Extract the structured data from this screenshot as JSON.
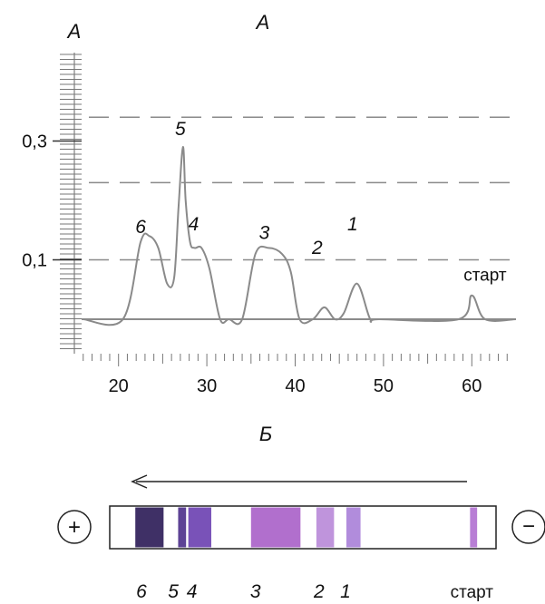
{
  "chart_data": {
    "type": "line",
    "title": "А",
    "ylabel": "А",
    "xlabel": "",
    "xlim": [
      15,
      65
    ],
    "ylim": [
      0,
      0.36
    ],
    "xticks": [
      20,
      30,
      40,
      50,
      60
    ],
    "xtick_labels": [
      "20",
      "30",
      "40",
      "50",
      "60"
    ],
    "yticks": [
      0.1,
      0.3
    ],
    "ytick_labels": [
      "0,1",
      "0,3"
    ],
    "grid_y": [
      0.1,
      0.23,
      0.34
    ],
    "series": [
      {
        "x": [
          16,
          20.5,
          22.5,
          23.5,
          24.5,
          25.5,
          26.3,
          26.8,
          27.3,
          27.6,
          28.1,
          28.6,
          29.4,
          30.3,
          31.5,
          32.5,
          34,
          35.5,
          37,
          38.5,
          39.5,
          40.5,
          42,
          43.3,
          44.5,
          45.5,
          47,
          48.5,
          49.5,
          58.5,
          60,
          61.5,
          65
        ],
        "y": [
          0,
          0,
          0.13,
          0.14,
          0.12,
          0.06,
          0.07,
          0.19,
          0.29,
          0.2,
          0.13,
          0.12,
          0.12,
          0.085,
          0,
          0,
          0,
          0.11,
          0.12,
          0.11,
          0.08,
          0,
          0,
          0.02,
          0,
          0.01,
          0.06,
          0,
          0,
          0,
          0.04,
          0,
          0
        ]
      }
    ],
    "peak_labels": [
      {
        "text": "1",
        "x": 46.5,
        "y": 0.15
      },
      {
        "text": "2",
        "x": 42.5,
        "y": 0.11
      },
      {
        "text": "3",
        "x": 36.5,
        "y": 0.135
      },
      {
        "text": "4",
        "x": 28.5,
        "y": 0.15
      },
      {
        "text": "5",
        "x": 27,
        "y": 0.31
      },
      {
        "text": "6",
        "x": 22.5,
        "y": 0.145
      },
      {
        "text": "старт",
        "x": 61.5,
        "y": 0.065
      }
    ]
  },
  "strip": {
    "title": "Б",
    "plus_symbol": "+",
    "minus_symbol": "−",
    "bands": [
      {
        "x": 23.5,
        "w": 3.2,
        "color": "#2a1a55"
      },
      {
        "x": 27.2,
        "w": 0.9,
        "color": "#4b2e8a"
      },
      {
        "x": 29.2,
        "w": 2.6,
        "color": "#6a3fb0"
      },
      {
        "x": 37.8,
        "w": 5.6,
        "color": "#a85fc8"
      },
      {
        "x": 43.4,
        "w": 2.0,
        "color": "#b888d8"
      },
      {
        "x": 46.6,
        "w": 1.6,
        "color": "#a880d8"
      },
      {
        "x": 60.2,
        "w": 0.8,
        "color": "#b070d0"
      }
    ],
    "labels": [
      "6",
      "5",
      "4",
      "3",
      "2",
      "1",
      "старт"
    ],
    "label_x": [
      22.6,
      26.2,
      28.3,
      35.5,
      42.7,
      45.7,
      60
    ]
  }
}
